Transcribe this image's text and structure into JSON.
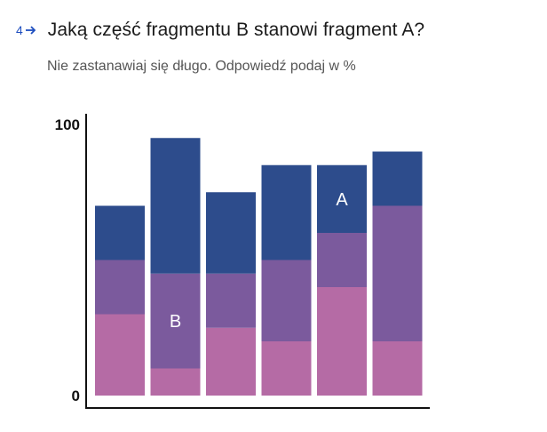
{
  "question": {
    "number": "4",
    "title": "Jaką część fragmentu B stanowi fragment A?",
    "subtitle": "Nie zastanawiaj się długo. Odpowiedź podaj w %"
  },
  "colors": {
    "accent": "#1f4fbf",
    "bottom": "#b56ba5",
    "middle": "#7b5a9d",
    "top": "#2d4c8c"
  },
  "chart_data": {
    "type": "bar",
    "stacked": true,
    "title": "",
    "xlabel": "",
    "ylabel": "",
    "ylim": [
      0,
      100
    ],
    "ytick_labels": [
      "0",
      "100"
    ],
    "grid": false,
    "legend": "none",
    "categories": [
      "",
      "",
      "",
      "",
      "",
      ""
    ],
    "series": [
      {
        "values": [
          30,
          10,
          25,
          20,
          40,
          20
        ]
      },
      {
        "values": [
          20,
          35,
          20,
          30,
          20,
          50
        ]
      },
      {
        "values": [
          20,
          50,
          30,
          35,
          25,
          20
        ]
      }
    ],
    "annotations": [
      {
        "text": "B",
        "category_index": 1,
        "series_index": 1
      },
      {
        "text": "A",
        "category_index": 4,
        "series_index": 2
      }
    ]
  }
}
